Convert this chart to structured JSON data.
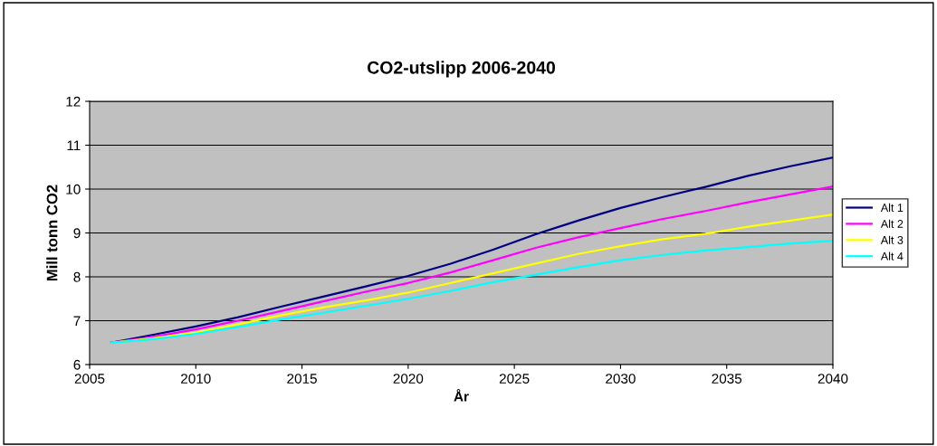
{
  "chart_data": {
    "type": "line",
    "title": "CO2-utslipp 2006-2040",
    "xlabel": "År",
    "ylabel": "Mill tonn CO2",
    "x": [
      2006,
      2008,
      2010,
      2012,
      2014,
      2016,
      2018,
      2020,
      2022,
      2024,
      2026,
      2028,
      2030,
      2032,
      2034,
      2036,
      2038,
      2040
    ],
    "series": [
      {
        "name": "Alt 1",
        "color": "#000080",
        "values": [
          6.5,
          6.68,
          6.87,
          7.08,
          7.32,
          7.55,
          7.78,
          8.02,
          8.3,
          8.62,
          8.97,
          9.28,
          9.57,
          9.82,
          10.05,
          10.3,
          10.52,
          10.72
        ]
      },
      {
        "name": "Alt 2",
        "color": "#ff00ff",
        "values": [
          6.5,
          6.63,
          6.8,
          7.0,
          7.22,
          7.44,
          7.66,
          7.86,
          8.1,
          8.38,
          8.66,
          8.9,
          9.11,
          9.32,
          9.5,
          9.7,
          9.88,
          10.06
        ]
      },
      {
        "name": "Alt 3",
        "color": "#ffff00",
        "values": [
          6.5,
          6.6,
          6.73,
          6.92,
          7.12,
          7.3,
          7.46,
          7.64,
          7.86,
          8.08,
          8.3,
          8.52,
          8.7,
          8.86,
          8.98,
          9.14,
          9.28,
          9.42
        ]
      },
      {
        "name": "Alt 4",
        "color": "#00ffff",
        "values": [
          6.5,
          6.58,
          6.7,
          6.86,
          7.03,
          7.18,
          7.34,
          7.5,
          7.68,
          7.88,
          8.05,
          8.22,
          8.38,
          8.5,
          8.6,
          8.68,
          8.76,
          8.82
        ]
      }
    ],
    "xlim": [
      2005,
      2040
    ],
    "xticks": [
      2005,
      2010,
      2015,
      2020,
      2025,
      2030,
      2035,
      2040
    ],
    "ylim": [
      6,
      12
    ],
    "yticks": [
      6,
      7,
      8,
      9,
      10,
      11,
      12
    ],
    "grid": "y",
    "legend": "right",
    "marker": "none",
    "line_style": "solid"
  }
}
